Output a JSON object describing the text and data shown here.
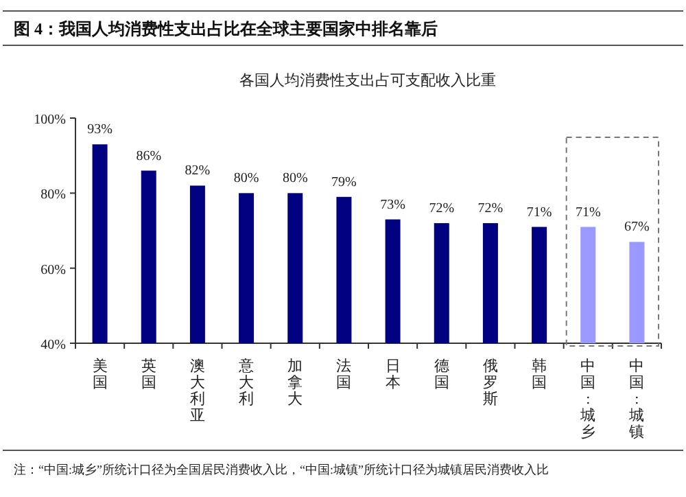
{
  "chart_data": {
    "type": "bar",
    "title": "图 4：我国人均消费性支出占比在全球主要国家中排名靠后",
    "subtitle": "各国人均消费性支出占可支配收入比重",
    "categories": [
      "美国",
      "英国",
      "澳大利亚",
      "意大利",
      "加拿大",
      "法国",
      "日本",
      "德国",
      "俄罗斯",
      "韩国",
      "中国:城乡",
      "中国:城镇"
    ],
    "values": [
      93,
      86,
      82,
      80,
      80,
      79,
      73,
      72,
      72,
      71,
      71,
      67
    ],
    "colors": [
      "#000080",
      "#000080",
      "#000080",
      "#000080",
      "#000080",
      "#000080",
      "#000080",
      "#000080",
      "#000080",
      "#000080",
      "#9999ff",
      "#9999ff"
    ],
    "value_labels": [
      "93%",
      "86%",
      "82%",
      "80%",
      "80%",
      "79%",
      "73%",
      "72%",
      "72%",
      "71%",
      "71%",
      "67%"
    ],
    "ylim": [
      40,
      100
    ],
    "yticks": [
      {
        "value": 40,
        "label": "40%"
      },
      {
        "value": 60,
        "label": "60%"
      },
      {
        "value": 80,
        "label": "80%"
      },
      {
        "value": 100,
        "label": "100%"
      }
    ],
    "annotations": [
      "注：“中国:城乡”所统计口径为全国居民消费收入比，“中国:城镇”所统计口径为城镇居民消费收入比"
    ]
  }
}
